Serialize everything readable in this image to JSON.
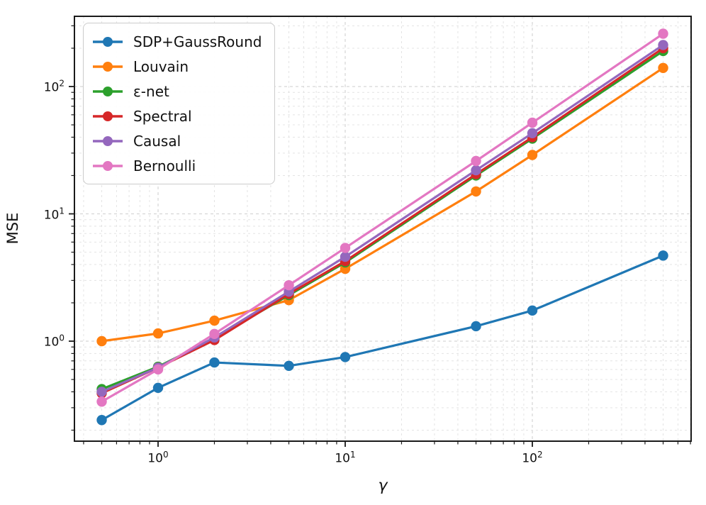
{
  "chart_data": {
    "type": "line",
    "title": "",
    "xlabel": "γ",
    "ylabel": "MSE",
    "x_scale": "log",
    "y_scale": "log",
    "xlim": [
      0.36,
      700
    ],
    "ylim": [
      0.165,
      355
    ],
    "grid": "both-major-and-minor, dashed, light-gray",
    "legend_position": "upper-left",
    "x": [
      0.5,
      1,
      2,
      5,
      10,
      50,
      100,
      500
    ],
    "series": [
      {
        "name": "SDP+GaussRound",
        "color": "#1f77b4",
        "values": [
          0.24,
          0.43,
          0.68,
          0.64,
          0.75,
          1.31,
          1.74,
          4.7
        ]
      },
      {
        "name": "Louvain",
        "color": "#ff7f0e",
        "values": [
          1.0,
          1.15,
          1.45,
          2.1,
          3.7,
          15,
          29,
          140
        ]
      },
      {
        "name": "ε-net",
        "color": "#2ca02c",
        "values": [
          0.42,
          0.63,
          1.05,
          2.3,
          4.15,
          20,
          39,
          190
        ]
      },
      {
        "name": "Spectral",
        "color": "#d62728",
        "values": [
          0.39,
          0.62,
          1.02,
          2.35,
          4.25,
          20.5,
          40,
          200
        ]
      },
      {
        "name": "Causal",
        "color": "#9467bd",
        "values": [
          0.4,
          0.62,
          1.07,
          2.45,
          4.6,
          22,
          43,
          212
        ]
      },
      {
        "name": "Bernoulli",
        "color": "#e377c2",
        "values": [
          0.335,
          0.6,
          1.14,
          2.75,
          5.4,
          26,
          52,
          260
        ]
      }
    ],
    "x_ticks": [
      {
        "value": 1,
        "base": "10",
        "exp": "0"
      },
      {
        "value": 10,
        "base": "10",
        "exp": "1"
      },
      {
        "value": 100,
        "base": "10",
        "exp": "2"
      }
    ],
    "y_ticks": [
      {
        "value": 1,
        "base": "10",
        "exp": "0"
      },
      {
        "value": 10,
        "base": "10",
        "exp": "1"
      },
      {
        "value": 100,
        "base": "10",
        "exp": "2"
      }
    ]
  }
}
